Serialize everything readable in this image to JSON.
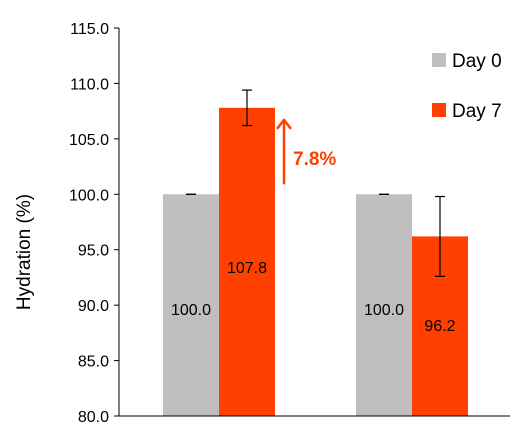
{
  "chart_data": {
    "type": "bar",
    "title": "",
    "xlabel": "",
    "ylabel": "Hydration (%)",
    "ylim": [
      80.0,
      115.0
    ],
    "yticks": [
      "80.0",
      "85.0",
      "90.0",
      "95.0",
      "100.0",
      "105.0",
      "110.0",
      "115.0"
    ],
    "grid": false,
    "legend_position": "top-right",
    "groups": 2,
    "series": [
      {
        "name": "Day 0",
        "color": "#bfbfbf",
        "values": [
          100.0,
          100.0
        ],
        "labels": [
          "100.0",
          "100.0"
        ],
        "error": [
          0.0,
          0.0
        ]
      },
      {
        "name": "Day 7",
        "color": "#ff4000",
        "values": [
          107.8,
          96.2
        ],
        "labels": [
          "107.8",
          "96.2"
        ],
        "error": [
          1.6,
          3.6
        ]
      }
    ],
    "annotation": {
      "text": "7.8%",
      "color": "#ff4000",
      "from": 100.0,
      "to": 106.8
    }
  }
}
